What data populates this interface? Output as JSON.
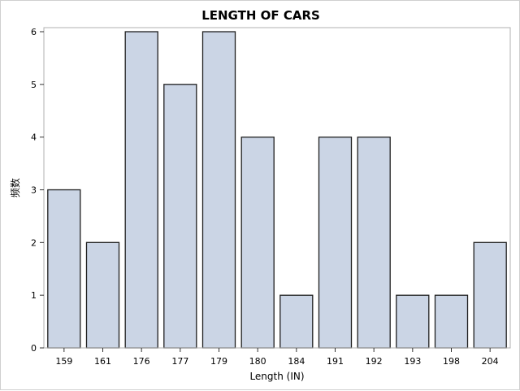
{
  "chart_data": {
    "type": "bar",
    "title": "LENGTH OF CARS",
    "xlabel": "Length (IN)",
    "ylabel": "频数",
    "categories": [
      "159",
      "161",
      "176",
      "177",
      "179",
      "180",
      "184",
      "191",
      "192",
      "193",
      "198",
      "204"
    ],
    "values": [
      3,
      2,
      6,
      5,
      6,
      4,
      1,
      4,
      4,
      1,
      1,
      2
    ],
    "yticks": [
      "0",
      "1",
      "2",
      "3",
      "4",
      "5",
      "6"
    ],
    "ylim": [
      0,
      6
    ],
    "grid": false,
    "colors": {
      "bar_fill": "#cbd5e5",
      "bar_stroke": "#1f1f1f"
    }
  }
}
